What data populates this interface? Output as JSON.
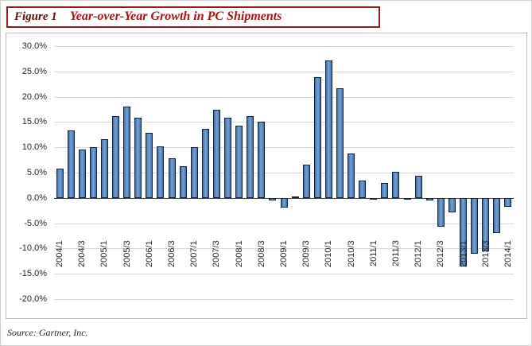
{
  "figure": {
    "label": "Figure 1",
    "title": "Year-over-Year Growth in PC Shipments",
    "source": "Source: Gartner, Inc."
  },
  "colors": {
    "page_border": "#d0d0d0",
    "title_border": "#8b1d1d",
    "figure_label": "#5f0d0d",
    "title_text": "#a91414",
    "chart_border": "#bdbdbd",
    "gridline": "#d9d9d9",
    "zero_line": "#404040",
    "axis_text": "#262626",
    "bar_fill_dark": "#3f6ea8",
    "bar_fill_light": "#7ba2d4",
    "bar_border": "#10243e"
  },
  "chart_data": {
    "type": "bar",
    "title": "Year-over-Year Growth in PC Shipments",
    "xlabel": "",
    "ylabel": "",
    "ylim": [
      -20,
      30
    ],
    "grid": true,
    "legend": false,
    "x_label_every": 2,
    "yticks": [
      {
        "value": 30,
        "label": "30.0%"
      },
      {
        "value": 25,
        "label": "25.0%"
      },
      {
        "value": 20,
        "label": "20.0%"
      },
      {
        "value": 15,
        "label": "15.0%"
      },
      {
        "value": 10,
        "label": "10.0%"
      },
      {
        "value": 5,
        "label": "5.0%"
      },
      {
        "value": 0,
        "label": "0.0%"
      },
      {
        "value": -5,
        "label": "-5.0%"
      },
      {
        "value": -10,
        "label": "-10.0%"
      },
      {
        "value": -15,
        "label": "-15.0%"
      },
      {
        "value": -20,
        "label": "-20.0%"
      }
    ],
    "categories": [
      "2004/1",
      "2004/2",
      "2004/3",
      "2004/4",
      "2005/1",
      "2005/2",
      "2005/3",
      "2005/4",
      "2006/1",
      "2006/2",
      "2006/3",
      "2006/4",
      "2007/1",
      "2007/2",
      "2007/3",
      "2007/4",
      "2008/1",
      "2008/2",
      "2008/3",
      "2008/4",
      "2009/1",
      "2009/2",
      "2009/3",
      "2009/4",
      "2010/1",
      "2010/2",
      "2010/3",
      "2010/4",
      "2011/1",
      "2011/2",
      "2011/3",
      "2011/4",
      "2012/1",
      "2012/2",
      "2012/3",
      "2012/4",
      "2013/1",
      "2013/2",
      "2013/3",
      "2013/4",
      "2014/1"
    ],
    "values": [
      5.8,
      13.4,
      9.5,
      10.1,
      11.6,
      16.2,
      18.0,
      15.8,
      12.8,
      10.2,
      7.8,
      6.3,
      10.0,
      13.6,
      17.4,
      15.9,
      14.2,
      16.1,
      15.1,
      -0.5,
      -1.9,
      0.3,
      6.5,
      23.8,
      27.2,
      21.7,
      8.8,
      3.5,
      -0.4,
      2.9,
      5.2,
      -0.4,
      4.4,
      -0.5,
      -5.7,
      -2.9,
      -13.5,
      -11.0,
      -10.5,
      -6.9,
      -1.7
    ]
  }
}
